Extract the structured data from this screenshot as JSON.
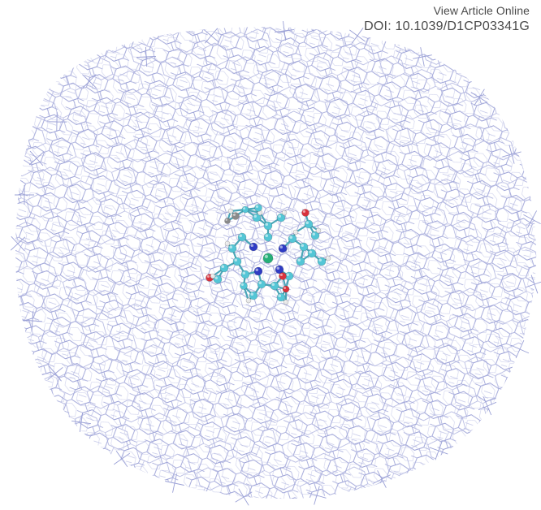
{
  "header": {
    "view_article_label": "View Article Online",
    "doi_text": "DOI: 10.1039/D1CP03341G"
  },
  "figure": {
    "description_colors": {
      "background": "#ffffff",
      "wireframe": "#9aa0d6",
      "carbon": "#54c6d6",
      "nitrogen": "#2f3cc4",
      "oxygen": "#d8323c",
      "metal": "#27b07a",
      "hydrogen": "#e8e8e8",
      "gray_atom": "#8a8a8a"
    }
  }
}
